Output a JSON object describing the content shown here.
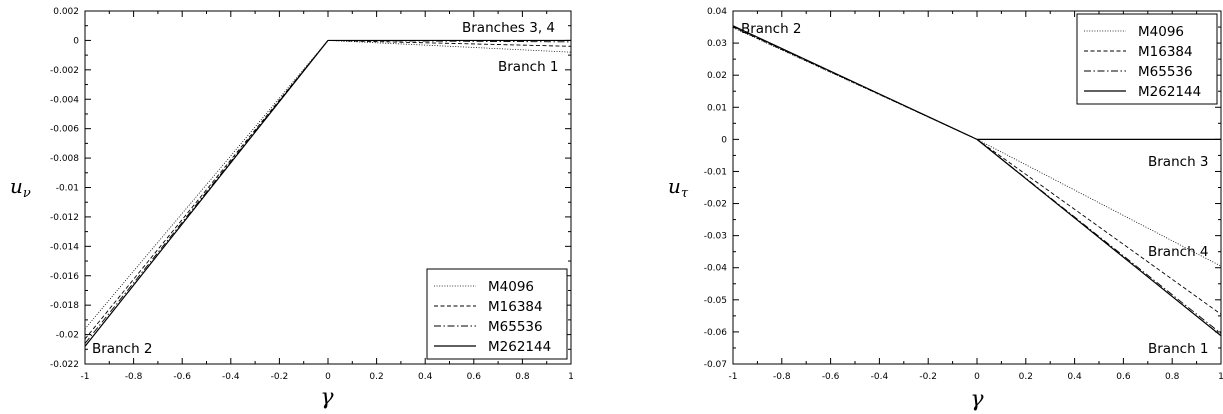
{
  "line_styles": {
    "M4096": {
      "dash": "1,1.6",
      "width": 0.8
    },
    "M16384": {
      "dash": "4,2.5",
      "width": 0.9
    },
    "M65536": {
      "dash": "7,2.5,1.5,2.5",
      "width": 0.9
    },
    "M262144": {
      "dash": "",
      "width": 1.2
    }
  },
  "chart_data": [
    {
      "type": "line",
      "xlabel": "γ",
      "ylabel": "uν",
      "ylabel_main": "u",
      "ylabel_sub": "ν",
      "xlim": [
        -1,
        1
      ],
      "ylim": [
        -0.022,
        0.002
      ],
      "xticks": [
        -1,
        -0.8,
        -0.6,
        -0.4,
        -0.2,
        0,
        0.2,
        0.4,
        0.6,
        0.8,
        1
      ],
      "xtick_labels": [
        "-1",
        "-0.8",
        "-0.6",
        "-0.4",
        "-0.2",
        "0",
        "0.2",
        "0.4",
        "0.6",
        "0.8",
        "1"
      ],
      "yticks": [
        0.002,
        0,
        -0.002,
        -0.004,
        -0.006,
        -0.008,
        -0.01,
        -0.012,
        -0.014,
        -0.016,
        -0.018,
        -0.02,
        -0.022
      ],
      "ytick_labels": [
        "0.002",
        "0",
        "-0.002",
        "-0.004",
        "-0.006",
        "-0.008",
        "-0.01",
        "-0.012",
        "-0.014",
        "-0.016",
        "-0.018",
        "-0.02",
        "-0.022"
      ],
      "legend_position": "bottom-right",
      "legend": [
        "M4096",
        "M16384",
        "M65536",
        "M262144"
      ],
      "annotations": [
        "Branches 3, 4",
        "Branch 1",
        "Branch 2"
      ],
      "series": [
        {
          "name": "M4096",
          "x": [
            -1,
            0
          ],
          "y": [
            -0.0196,
            0
          ]
        },
        {
          "name": "M16384",
          "x": [
            -1,
            0
          ],
          "y": [
            -0.0203,
            0
          ]
        },
        {
          "name": "M65536",
          "x": [
            -1,
            0
          ],
          "y": [
            -0.0206,
            0
          ]
        },
        {
          "name": "M262144",
          "x": [
            -1,
            0
          ],
          "y": [
            -0.0208,
            0
          ]
        },
        {
          "name": "M4096",
          "x": [
            0,
            1
          ],
          "y": [
            0,
            -0.0008
          ]
        },
        {
          "name": "M16384",
          "x": [
            0,
            1
          ],
          "y": [
            0,
            -0.0004
          ]
        },
        {
          "name": "M65536",
          "x": [
            0,
            1
          ],
          "y": [
            0,
            -0.0001
          ]
        },
        {
          "name": "M262144",
          "x": [
            0,
            1
          ],
          "y": [
            0,
            0
          ]
        }
      ]
    },
    {
      "type": "line",
      "xlabel": "γ",
      "ylabel": "uτ",
      "ylabel_main": "u",
      "ylabel_sub": "τ",
      "xlim": [
        -1,
        1
      ],
      "ylim": [
        -0.07,
        0.04
      ],
      "xticks": [
        -1,
        -0.8,
        -0.6,
        -0.4,
        -0.2,
        0,
        0.2,
        0.4,
        0.6,
        0.8,
        1
      ],
      "xtick_labels": [
        "-1",
        "-0.8",
        "-0.6",
        "-0.4",
        "-0.2",
        "0",
        "0.2",
        "0.4",
        "0.6",
        "0.8",
        "1"
      ],
      "yticks": [
        0.04,
        0.03,
        0.02,
        0.01,
        0,
        -0.01,
        -0.02,
        -0.03,
        -0.04,
        -0.05,
        -0.06,
        -0.07
      ],
      "ytick_labels": [
        "0.04",
        "0.03",
        "0.02",
        "0.01",
        "0",
        "-0.01",
        "-0.02",
        "-0.03",
        "-0.04",
        "-0.05",
        "-0.06",
        "-0.07"
      ],
      "legend_position": "top-right",
      "legend": [
        "M4096",
        "M16384",
        "M65536",
        "M262144"
      ],
      "annotations": [
        "Branch 2",
        "Branch 3",
        "Branch 4",
        "Branch 1"
      ],
      "series": [
        {
          "name": "M4096",
          "x": [
            -1,
            0
          ],
          "y": [
            0.0348,
            0
          ]
        },
        {
          "name": "M16384",
          "x": [
            -1,
            0
          ],
          "y": [
            0.035,
            0
          ]
        },
        {
          "name": "M65536",
          "x": [
            -1,
            0
          ],
          "y": [
            0.0352,
            0
          ]
        },
        {
          "name": "M262144",
          "x": [
            -1,
            0
          ],
          "y": [
            0.0354,
            0
          ]
        },
        {
          "name": "M262144",
          "x": [
            0,
            1
          ],
          "y": [
            0,
            0
          ]
        },
        {
          "name": "M4096",
          "x": [
            0,
            1
          ],
          "y": [
            0,
            -0.0395
          ]
        },
        {
          "name": "M16384",
          "x": [
            0,
            1
          ],
          "y": [
            0,
            -0.0545
          ]
        },
        {
          "name": "M65536",
          "x": [
            0,
            1
          ],
          "y": [
            0,
            -0.0605
          ]
        },
        {
          "name": "M262144",
          "x": [
            0,
            1
          ],
          "y": [
            0,
            -0.0612
          ]
        }
      ]
    }
  ]
}
